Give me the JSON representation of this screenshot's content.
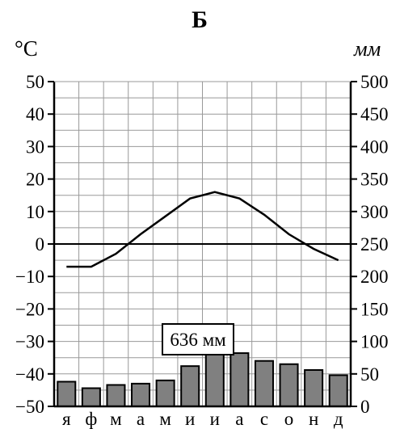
{
  "chart_data": {
    "type": "climatogram",
    "title": "Б",
    "ylabel_left": "°C",
    "ylabel_right": "мм",
    "categories": [
      "я",
      "ф",
      "м",
      "а",
      "м",
      "и",
      "и",
      "а",
      "с",
      "о",
      "н",
      "д"
    ],
    "temperature": [
      -7,
      -7,
      -3,
      3,
      8.5,
      14,
      16,
      14,
      9,
      3,
      -1.5,
      -5
    ],
    "precipitation": [
      38,
      28,
      33,
      35,
      40,
      62,
      80,
      82,
      70,
      65,
      56,
      48
    ],
    "ylim_left": [
      -50,
      50
    ],
    "ylim_right": [
      0,
      500
    ],
    "yticks_left": [
      "50",
      "40",
      "30",
      "20",
      "10",
      "0",
      "−10",
      "−20",
      "−30",
      "−40",
      "−50"
    ],
    "yticks_right": [
      "500",
      "450",
      "400",
      "350",
      "300",
      "250",
      "200",
      "150",
      "100",
      "50",
      "0"
    ],
    "annual_total": "636 мм",
    "grid": true,
    "colors": {
      "bar_fill": "#808080",
      "line": "#000000",
      "grid": "#999999"
    }
  }
}
